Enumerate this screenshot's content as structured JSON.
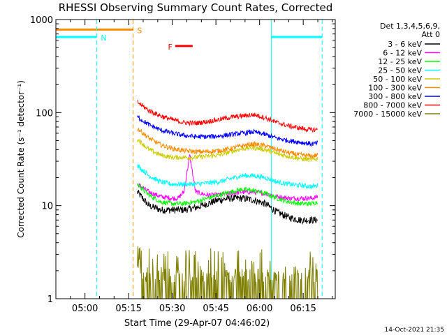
{
  "chart_data": {
    "type": "line",
    "title": "RHESSI Observing Summary Count Rates, Corrected",
    "xlabel": "Start Time (29-Apr-07 04:46:02)",
    "ylabel": "Corrected Count Rate (s⁻¹ detector⁻¹)",
    "y_scale": "log",
    "ylim": [
      1,
      1000
    ],
    "xlim_minutes": [
      4.0,
      100.0
    ],
    "x_origin": "04:46:02",
    "x_tick_minutes": [
      14,
      29,
      44,
      59,
      74,
      89
    ],
    "x_tick_labels": [
      "05:00",
      "05:15",
      "05:30",
      "05:45",
      "06:00",
      "06:15"
    ],
    "y_tick_values": [
      1,
      10,
      100,
      1000
    ],
    "y_tick_labels": [
      "1",
      "10",
      "100",
      "1000"
    ],
    "legend_header": [
      "Det 1,3,4,5,6,9,",
      "Att 0"
    ],
    "legend_placement": "right",
    "series": [
      {
        "name": "3 - 6 keV",
        "color": "#000000",
        "x": [
          32,
          36,
          40,
          44,
          48,
          52,
          56,
          60,
          64,
          68,
          72,
          76,
          80,
          84,
          88,
          92,
          94
        ],
        "values": [
          14,
          10,
          9,
          9,
          9,
          9.5,
          10.5,
          11.5,
          12,
          12,
          11.5,
          10.5,
          8.5,
          7.5,
          7,
          7,
          7
        ]
      },
      {
        "name": "6 - 12 keV",
        "color": "#ff00ff",
        "x": [
          32,
          36,
          40,
          44,
          46,
          48,
          50,
          52,
          56,
          60,
          64,
          68,
          72,
          76,
          80,
          84,
          88,
          92,
          94
        ],
        "values": [
          17,
          14,
          12.5,
          12,
          12,
          14,
          35,
          14,
          13,
          13,
          13.5,
          14,
          14,
          13.5,
          12.5,
          12,
          12,
          12,
          12.5
        ]
      },
      {
        "name": "12 - 25 keV",
        "color": "#00ff00",
        "x": [
          32,
          36,
          40,
          44,
          48,
          52,
          56,
          60,
          64,
          68,
          72,
          76,
          80,
          84,
          88,
          92,
          94
        ],
        "values": [
          17,
          13,
          11,
          10.5,
          10.5,
          11,
          12,
          13,
          14,
          15,
          14.5,
          13.5,
          12,
          11,
          10.5,
          10.5,
          11
        ]
      },
      {
        "name": "25 - 50 keV",
        "color": "#00ffff",
        "x": [
          32,
          36,
          40,
          44,
          48,
          52,
          56,
          60,
          64,
          68,
          72,
          76,
          80,
          84,
          88,
          92,
          94
        ],
        "values": [
          27,
          21,
          18,
          17,
          17,
          17,
          17.5,
          18,
          19.5,
          21,
          21,
          20,
          18,
          17,
          16.5,
          16,
          16.5
        ]
      },
      {
        "name": "50 - 100 keV",
        "color": "#cccc00",
        "x": [
          32,
          36,
          40,
          44,
          48,
          52,
          56,
          60,
          64,
          68,
          72,
          76,
          80,
          84,
          88,
          92,
          94
        ],
        "values": [
          52,
          40,
          35,
          33,
          33,
          33,
          34,
          35,
          38,
          41,
          42,
          40,
          36,
          34,
          32,
          31,
          32
        ]
      },
      {
        "name": "100 - 300 keV",
        "color": "#ff8c00",
        "x": [
          32,
          36,
          40,
          44,
          48,
          52,
          56,
          60,
          64,
          68,
          72,
          76,
          80,
          84,
          88,
          92,
          94
        ],
        "values": [
          68,
          53,
          45,
          41,
          39,
          38,
          38,
          39,
          41,
          44,
          46,
          44,
          40,
          37,
          35,
          34,
          35
        ]
      },
      {
        "name": "300 - 800 keV",
        "color": "#0000ff",
        "x": [
          32,
          36,
          40,
          44,
          48,
          52,
          56,
          60,
          64,
          68,
          72,
          76,
          80,
          84,
          88,
          92,
          94
        ],
        "values": [
          90,
          74,
          65,
          60,
          57,
          55,
          55,
          56,
          58,
          60,
          62,
          58,
          53,
          50,
          48,
          46,
          47
        ]
      },
      {
        "name": "800 - 7000 keV",
        "color": "#ff0000",
        "x": [
          32,
          36,
          40,
          44,
          48,
          52,
          56,
          60,
          64,
          68,
          72,
          76,
          80,
          84,
          88,
          92,
          94
        ],
        "values": [
          130,
          105,
          92,
          84,
          78,
          77,
          80,
          84,
          89,
          92,
          95,
          88,
          78,
          72,
          68,
          65,
          66
        ]
      },
      {
        "name": "7000 - 15000 keV",
        "color": "#808000",
        "x": [
          32,
          36,
          40,
          44,
          48,
          52,
          56,
          60,
          64,
          68,
          72,
          76,
          80,
          84,
          88,
          92,
          94
        ],
        "values": [
          3.5,
          2,
          1.3,
          1.5,
          1.3,
          1.5,
          1.5,
          1.3,
          1.5,
          1.5,
          2,
          1.5,
          1.3,
          1.5,
          1.3,
          1.5,
          1.5
        ]
      }
    ],
    "flag_bars": [
      {
        "label": "S",
        "color": "#ff8c00",
        "start_minutes": 4.0,
        "end_minutes": 30.5,
        "value": 780
      },
      {
        "label": "N",
        "color": "#00ffff",
        "start_minutes": 4.0,
        "end_minutes": 18.0,
        "value": 650
      },
      {
        "label": "",
        "color": "#00ffff",
        "start_minutes": 78.0,
        "end_minutes": 95.5,
        "value": 650
      },
      {
        "label": "F",
        "color": "#ff0000",
        "start_minutes": 45.0,
        "end_minutes": 51.0,
        "value": 520
      }
    ],
    "vertical_markers": [
      {
        "color": "#00ffff",
        "style": "solid",
        "minutes": 4.0
      },
      {
        "color": "#00ffff",
        "style": "dashed",
        "minutes": 18.0
      },
      {
        "color": "#ff8c00",
        "style": "dashed",
        "minutes": 30.5
      },
      {
        "color": "#00ffff",
        "style": "solid",
        "minutes": 78.0
      },
      {
        "color": "#00ffff",
        "style": "dashed",
        "minutes": 95.5
      }
    ]
  },
  "footer_date": "14-Oct-2021 21:35"
}
